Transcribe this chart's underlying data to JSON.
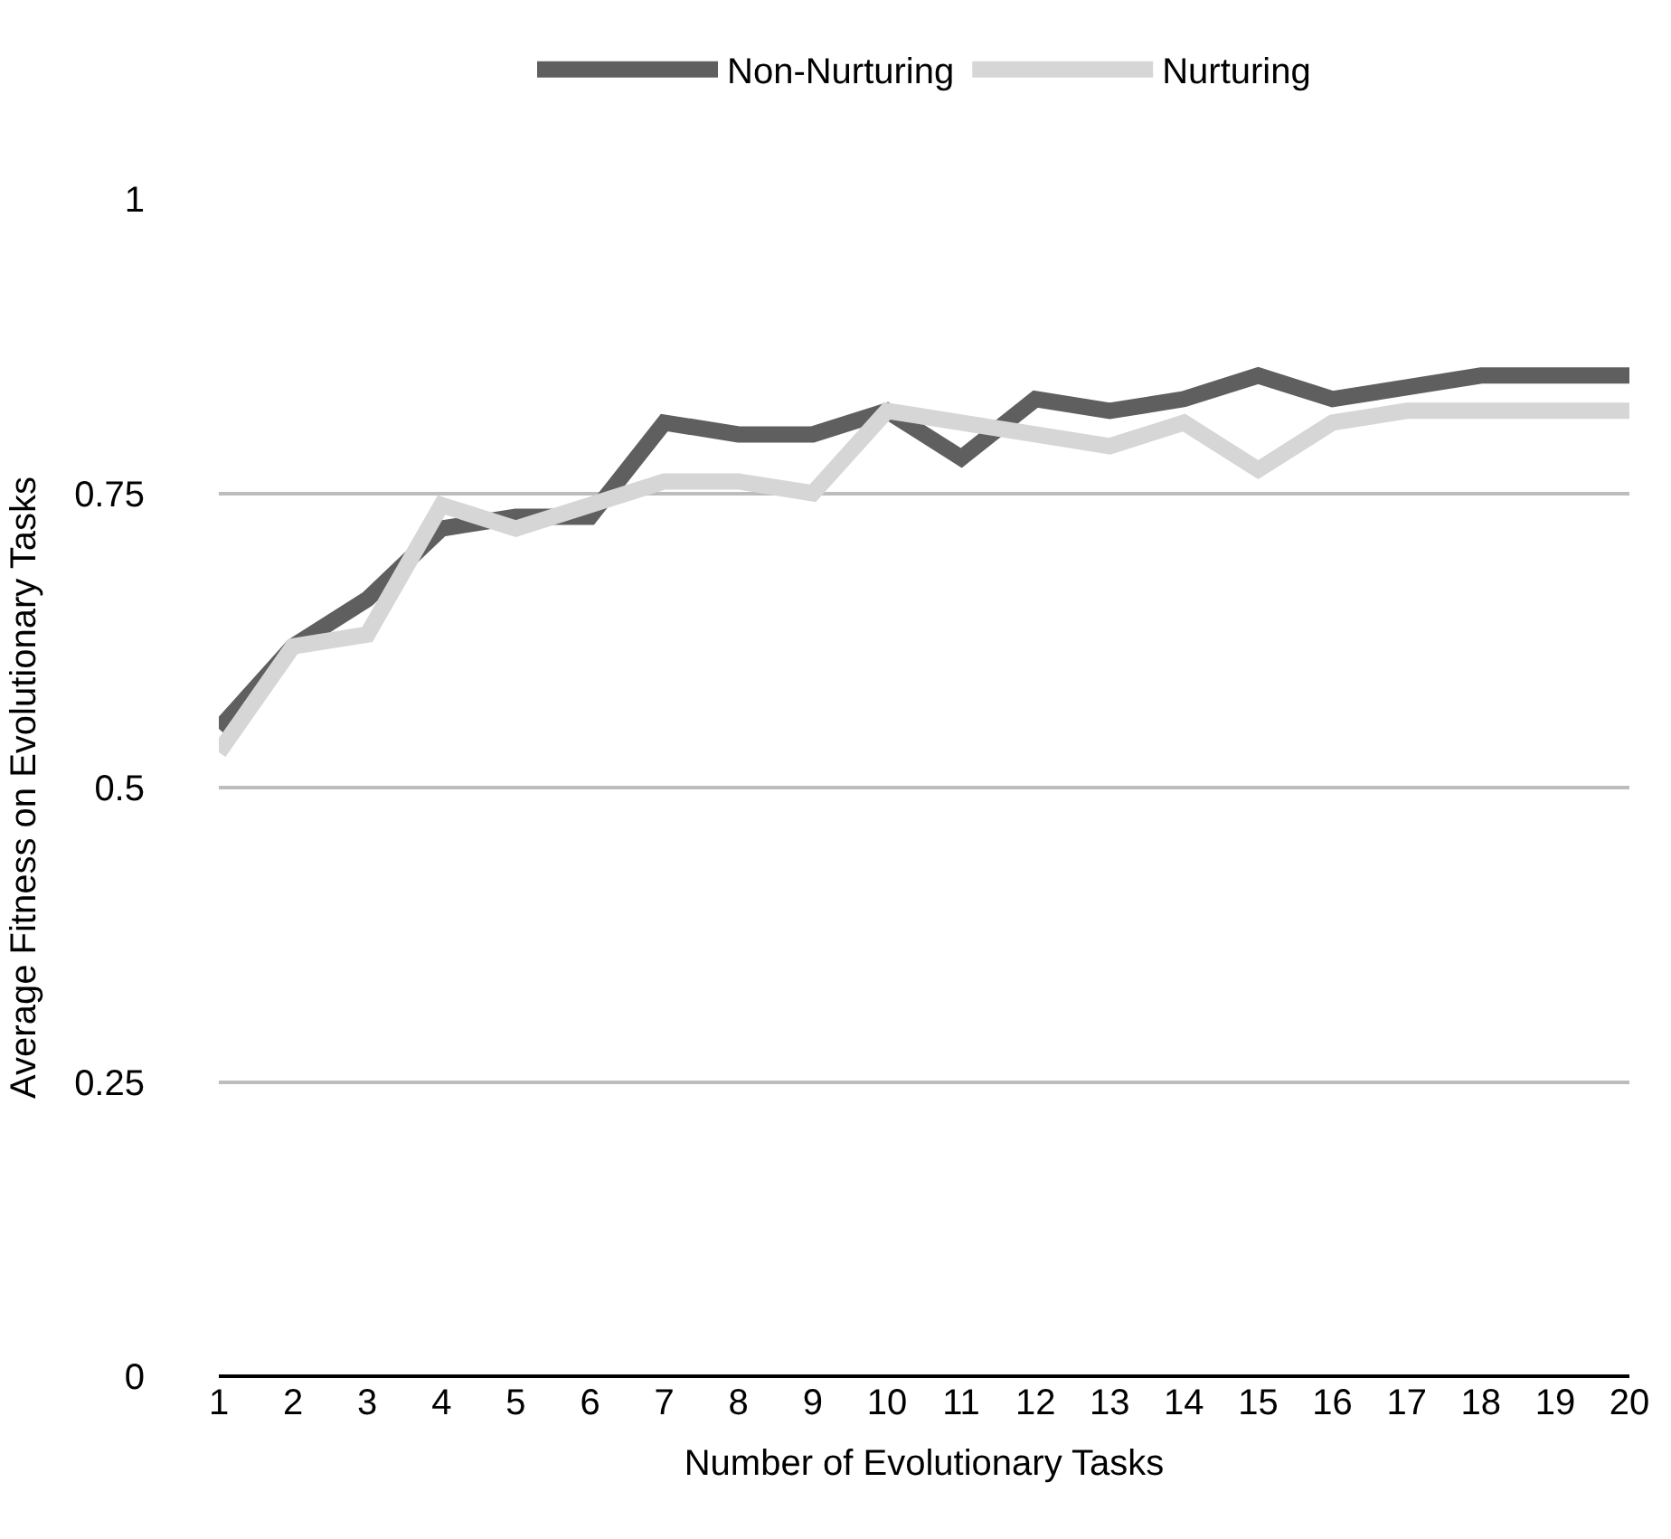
{
  "chart_data": {
    "type": "line",
    "xlabel": "Number of Evolutionary Tasks",
    "ylabel": "Average Fitness on Evolutionary Tasks",
    "x": [
      1,
      2,
      3,
      4,
      5,
      6,
      7,
      8,
      9,
      10,
      11,
      12,
      13,
      14,
      15,
      16,
      17,
      18,
      19,
      20
    ],
    "series": [
      {
        "name": "Non-Nurturing",
        "color": "#5f5f5f",
        "values": [
          0.55,
          0.62,
          0.66,
          0.72,
          0.73,
          0.73,
          0.81,
          0.8,
          0.8,
          0.82,
          0.78,
          0.83,
          0.82,
          0.83,
          0.85,
          0.83,
          0.84,
          0.85,
          0.85,
          0.85
        ]
      },
      {
        "name": "Nurturing",
        "color": "#d6d6d6",
        "values": [
          0.53,
          0.62,
          0.63,
          0.74,
          0.72,
          0.74,
          0.76,
          0.76,
          0.75,
          0.82,
          0.81,
          0.8,
          0.79,
          0.81,
          0.77,
          0.81,
          0.82,
          0.82,
          0.82,
          0.82
        ]
      }
    ],
    "xlim": [
      1,
      20
    ],
    "xticks": [
      1,
      2,
      3,
      4,
      5,
      6,
      7,
      8,
      9,
      10,
      11,
      12,
      13,
      14,
      15,
      16,
      17,
      18,
      19,
      20
    ],
    "ylim": [
      0,
      1
    ],
    "yticks": [
      0,
      0.25,
      0.5,
      0.75,
      1
    ],
    "grid": "y",
    "legend": "top",
    "marker": "none",
    "line_style": "solid"
  }
}
